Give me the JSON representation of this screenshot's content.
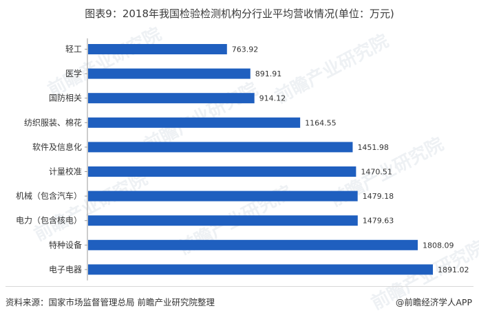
{
  "title": "图表9：2018年我国检验检测机构分行业平均营收情况(单位：万元)",
  "source": "资料来源：国家市场监督管理总局 前瞻产业研究院整理",
  "brand": "@前瞻经济学人APP",
  "watermark": "前瞻产业研究院",
  "colors": {
    "bar": "#1f5fbf"
  },
  "chart_data": {
    "type": "bar",
    "orientation": "horizontal",
    "title": "图表9：2018年我国检验检测机构分行业平均营收情况(单位：万元)",
    "unit": "万元",
    "grid": false,
    "categories": [
      "轻工",
      "医学",
      "国防相关",
      "纺织服装、棉花",
      "软件及信息化",
      "计量校准",
      "机械（包含汽车）",
      "电力（包含核电）",
      "特种设备",
      "电子电器"
    ],
    "values": [
      763.92,
      891.91,
      914.12,
      1164.55,
      1451.98,
      1470.51,
      1479.18,
      1479.63,
      1808.09,
      1891.02
    ],
    "labels": [
      "763.92",
      "891.91",
      "914.12",
      "1164.55",
      "1451.98",
      "1470.51",
      "1479.18",
      "1479.63",
      "1808.09",
      "1891.02"
    ]
  }
}
